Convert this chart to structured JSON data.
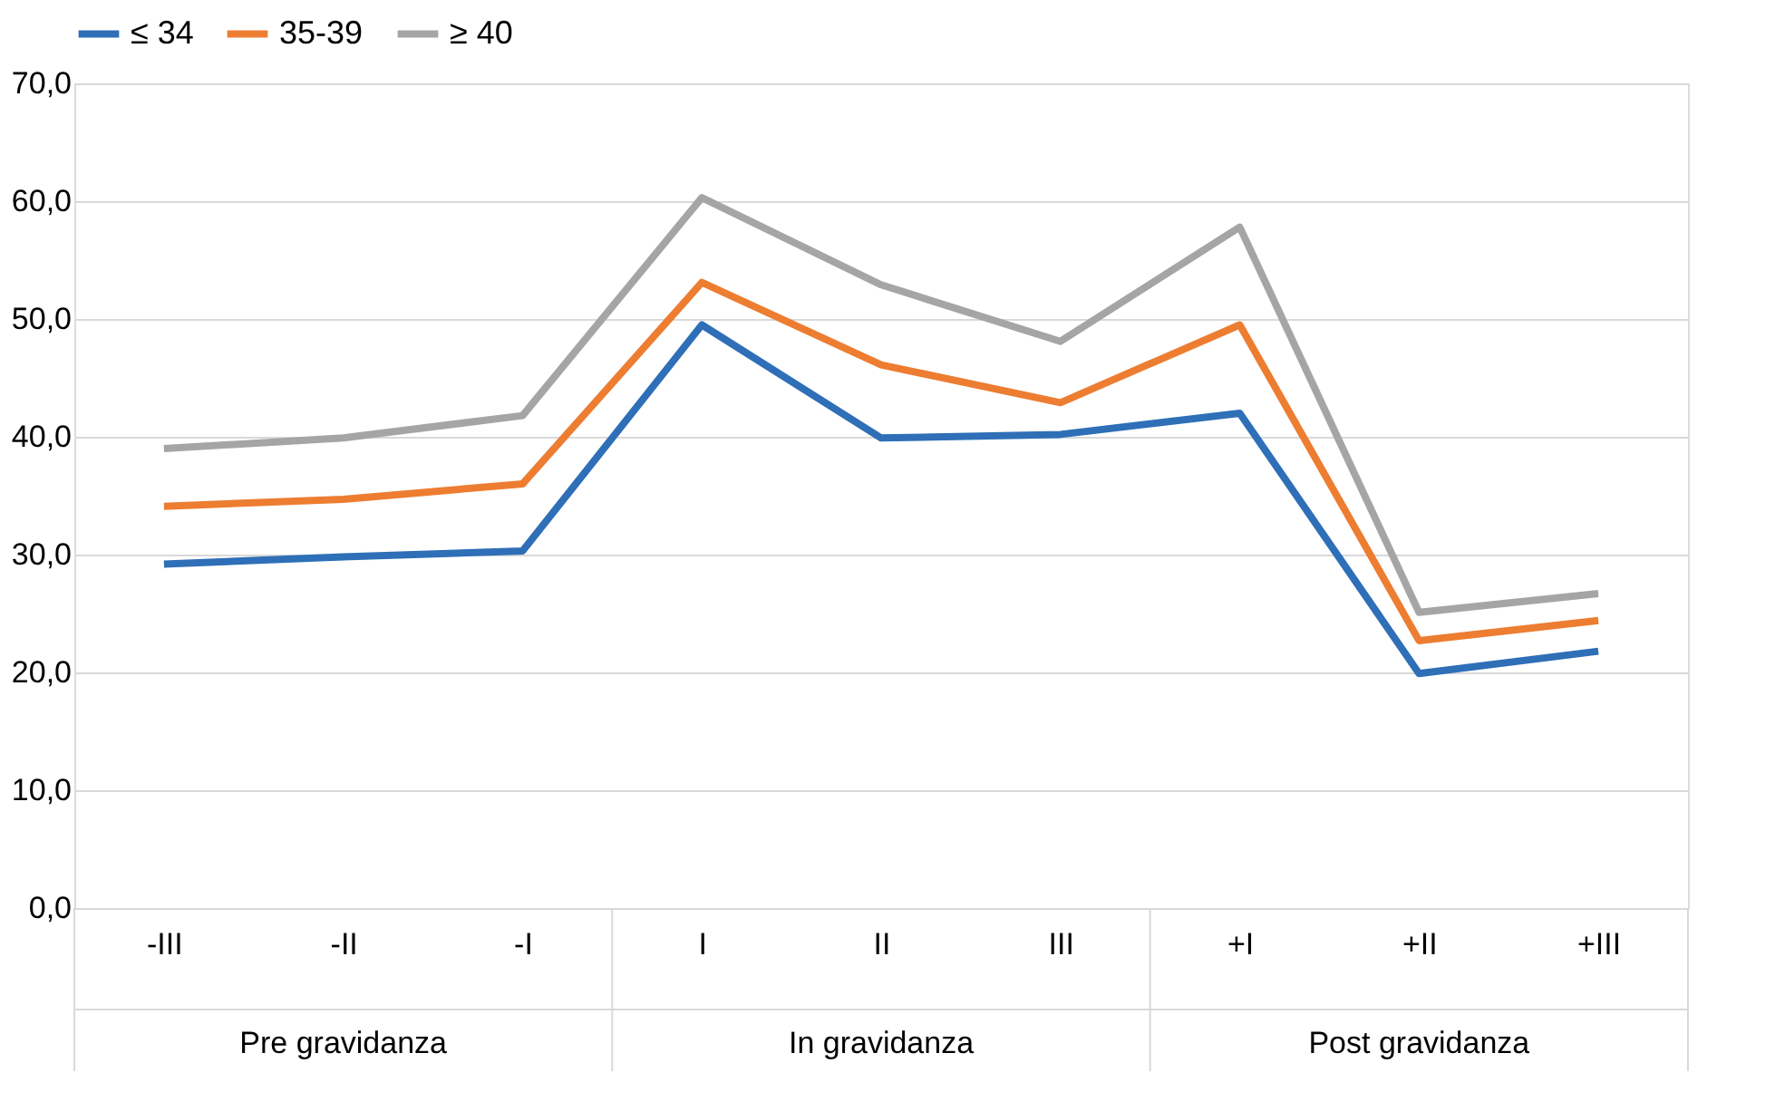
{
  "chart_data": {
    "type": "line",
    "categories": [
      "-III",
      "-II",
      "-I",
      "I",
      "II",
      "III",
      "+I",
      "+II",
      "+III"
    ],
    "annotations": [
      "Pre gravidanza",
      "In gravidanza",
      "Post gravidanza"
    ],
    "series": [
      {
        "name": "≤ 34",
        "color": "#2e6fb7",
        "values": [
          29.2,
          29.8,
          30.3,
          49.5,
          39.9,
          40.2,
          42.0,
          19.9,
          21.8
        ]
      },
      {
        "name": "35-39",
        "color": "#ed7d31",
        "values": [
          34.1,
          34.7,
          36.0,
          53.1,
          46.1,
          42.9,
          49.5,
          22.7,
          24.4
        ]
      },
      {
        "name": "≥ 40",
        "color": "#a5a5a5",
        "values": [
          39.0,
          39.9,
          41.8,
          60.3,
          52.9,
          48.1,
          57.8,
          25.1,
          26.7
        ]
      }
    ],
    "ylim": [
      0,
      70
    ],
    "yticks": [
      {
        "value": 0,
        "label": "0,0"
      },
      {
        "value": 10,
        "label": "10,0"
      },
      {
        "value": 20,
        "label": "20,0"
      },
      {
        "value": 30,
        "label": "30,0"
      },
      {
        "value": 40,
        "label": "40,0"
      },
      {
        "value": 50,
        "label": "50,0"
      },
      {
        "value": 60,
        "label": "60,0"
      },
      {
        "value": 70,
        "label": "70,0"
      }
    ],
    "grid": "y",
    "legend": "top",
    "marker": "none",
    "line_style": "solid"
  }
}
